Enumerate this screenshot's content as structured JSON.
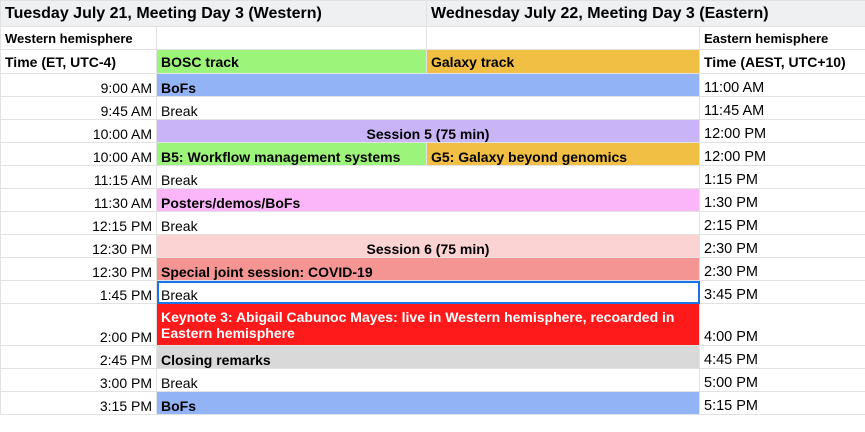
{
  "header": {
    "west_title": "Tuesday July 21, Meeting Day 3 (Western)",
    "east_title": "Wednesday July 22, Meeting Day 3 (Eastern)",
    "west_hemisphere": "Western hemisphere",
    "east_hemisphere": "Eastern hemisphere",
    "time_west": "Time (ET, UTC-4)",
    "bosc_track": "BOSC track",
    "galaxy_track": "Galaxy track",
    "time_east": "Time (AEST, UTC+10)"
  },
  "colors": {
    "bosc_green": "#9cf57a",
    "galaxy_orange": "#f2bf45",
    "bofs_blue": "#92b4f7",
    "session5_purple": "#c9b4f8",
    "posters_pink": "#fbb6f9",
    "session6_pink": "#fbd3d3",
    "covid_salmon": "#f59593",
    "keynote_red": "#fe1a1a",
    "closing_gray": "#d9d9d9"
  },
  "rows": [
    {
      "west": "9:00 AM",
      "event": "BoFs",
      "east": "11:00 AM"
    },
    {
      "west": "9:45 AM",
      "event": "Break",
      "east": "11:45 AM"
    },
    {
      "west": "10:00 AM",
      "event": "Session 5 (75 min)",
      "east": "12:00 PM"
    },
    {
      "west": "10:00 AM",
      "bosc": "B5: Workflow management systems",
      "galaxy": "G5: Galaxy beyond genomics",
      "east": "12:00 PM"
    },
    {
      "west": "11:15 AM",
      "event": "Break",
      "east": "1:15 PM"
    },
    {
      "west": "11:30 AM",
      "event": "Posters/demos/BoFs",
      "east": "1:30 PM"
    },
    {
      "west": "12:15 PM",
      "event": "Break",
      "east": "2:15 PM"
    },
    {
      "west": "12:30 PM",
      "event": "Session 6 (75 min)",
      "east": "2:30 PM"
    },
    {
      "west": "12:30 PM",
      "event": "Special joint session: COVID-19",
      "east": "2:30 PM"
    },
    {
      "west": "1:45 PM",
      "event": "Break",
      "east": "3:45 PM"
    },
    {
      "west": "2:00 PM",
      "event": "Keynote 3: Abigail Cabunoc Mayes: live in Western hemisphere, recoarded in Eastern hemisphere",
      "east": "4:00 PM"
    },
    {
      "west": "2:45 PM",
      "event": "Closing remarks",
      "east": "4:45 PM"
    },
    {
      "west": "3:00 PM",
      "event": "Break",
      "east": "5:00 PM"
    },
    {
      "west": "3:15 PM",
      "event": "BoFs",
      "east": "5:15 PM"
    }
  ]
}
